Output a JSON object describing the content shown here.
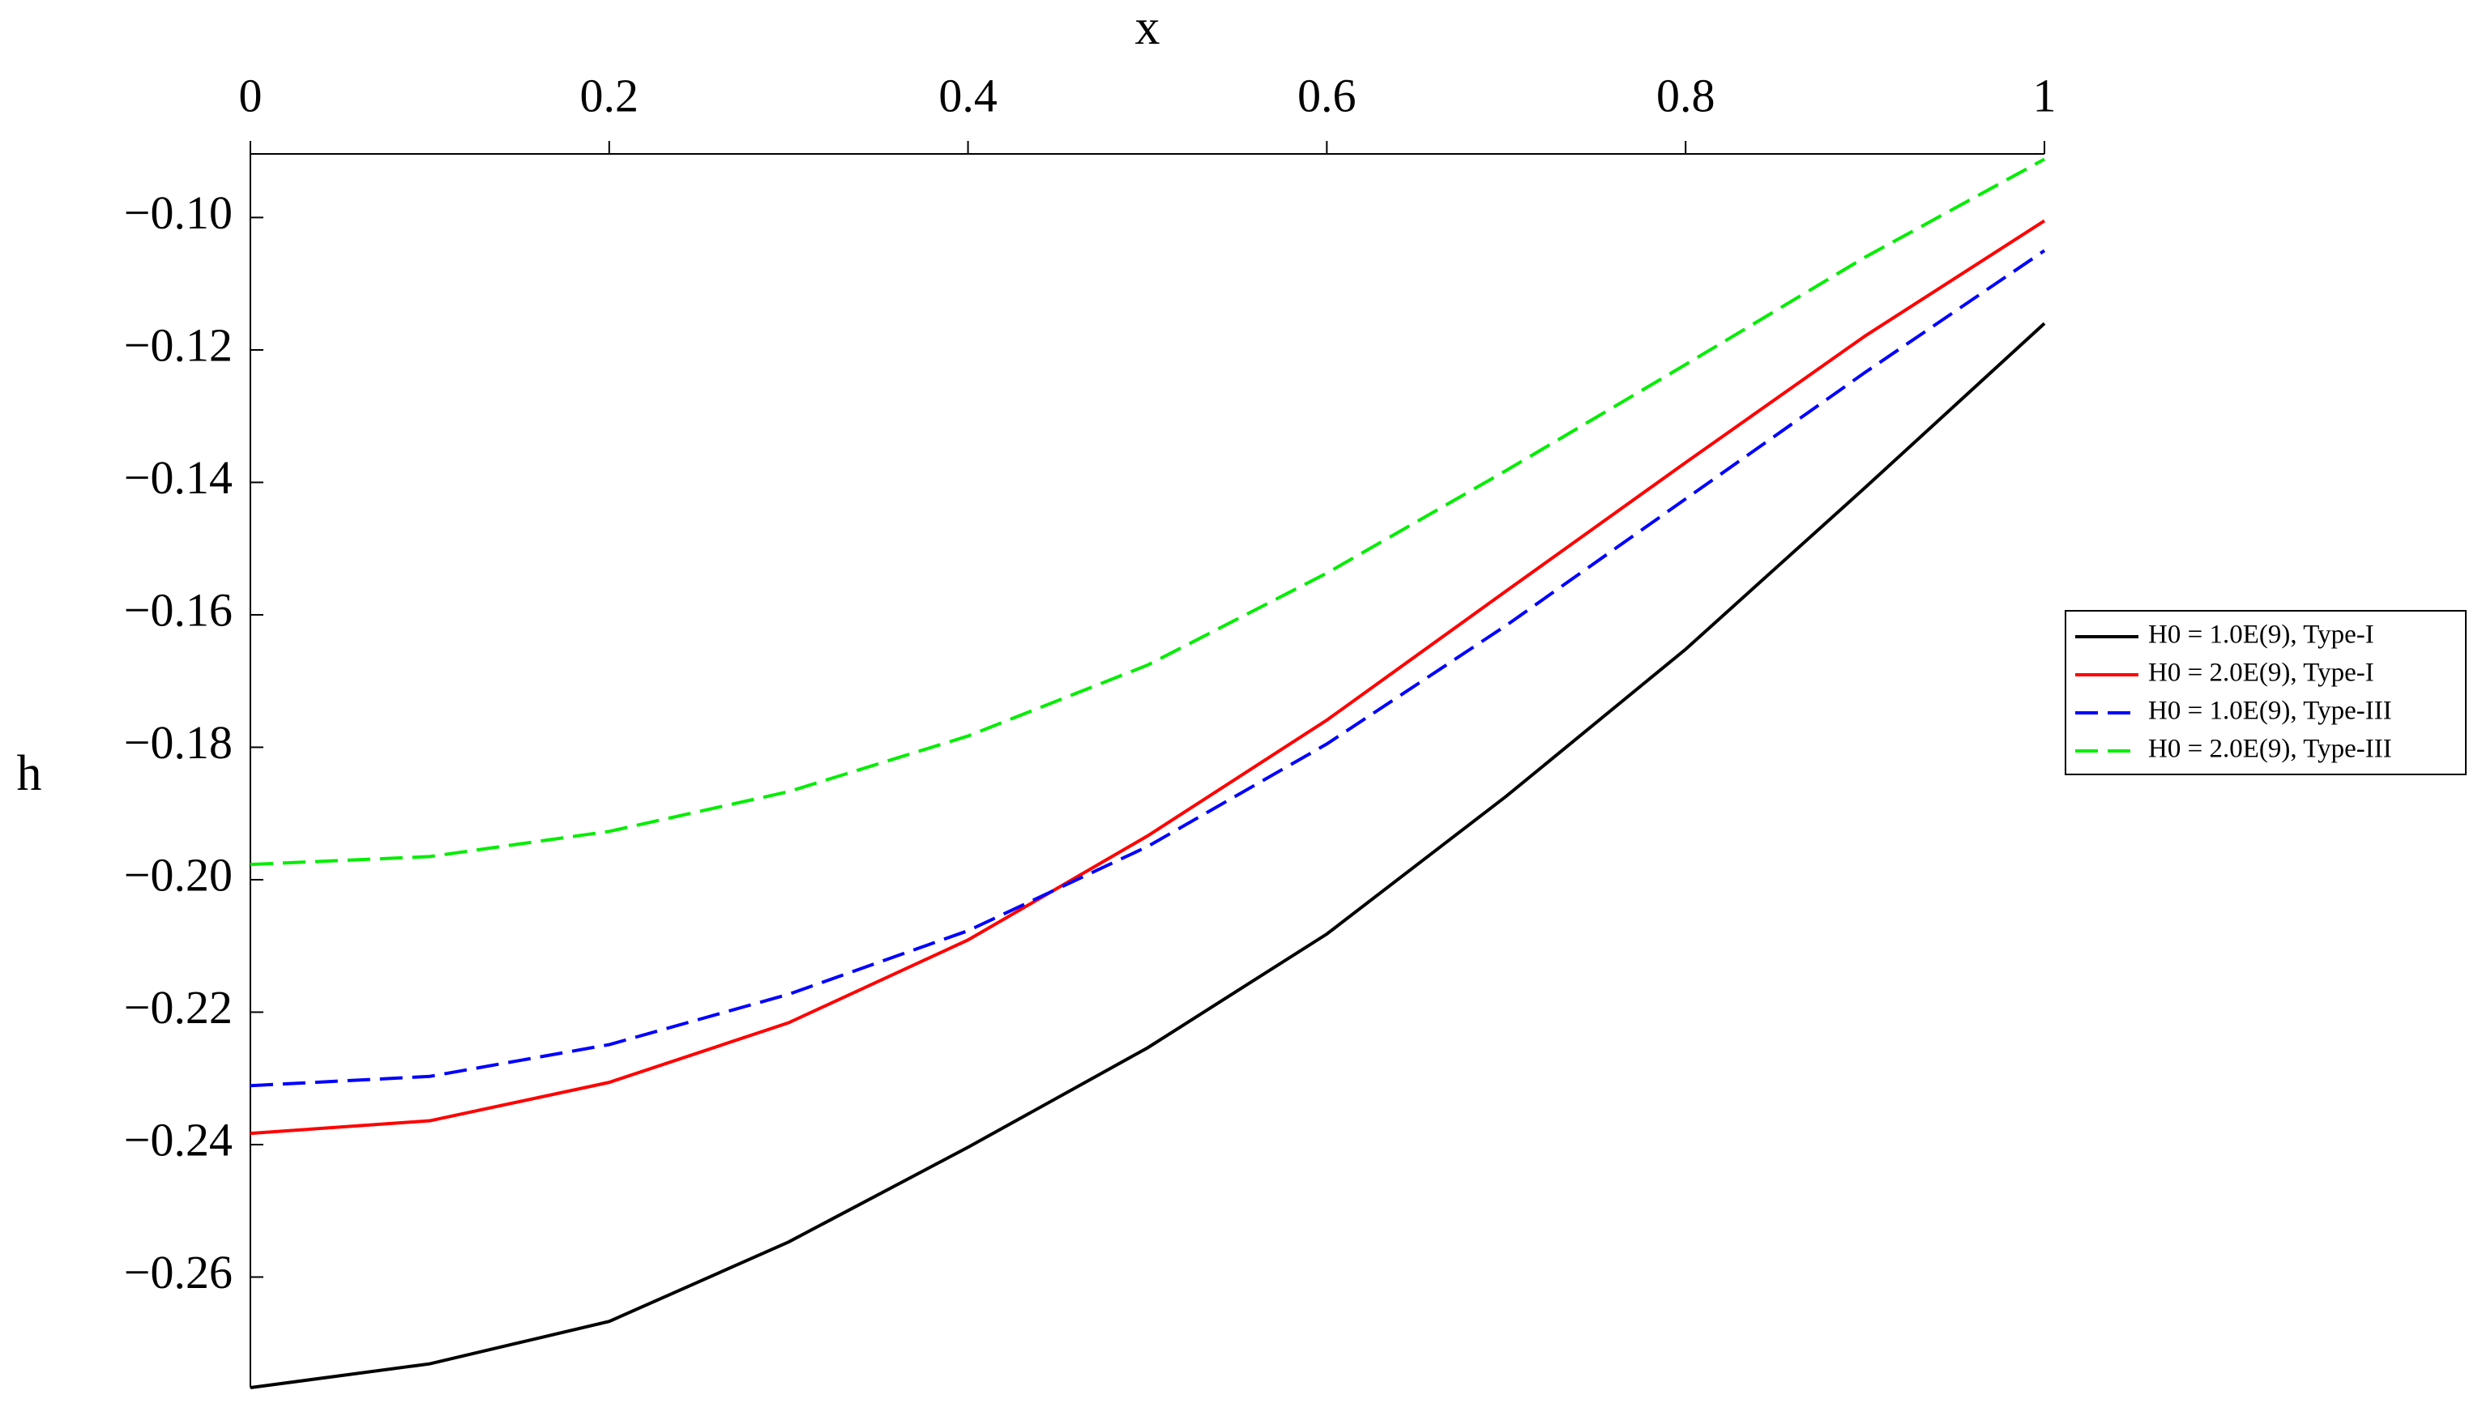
{
  "chart_data": {
    "type": "line",
    "x_label": "x",
    "y_label": "h",
    "x": [
      0,
      0.1,
      0.2,
      0.3,
      0.4,
      0.5,
      0.6,
      0.7,
      0.8,
      0.9,
      1
    ],
    "series": [
      {
        "name": "H0 = 1.0E(9), Type-I",
        "color": "#000000",
        "style": "solid",
        "values": [
          -0.2767,
          -0.2731,
          -0.2667,
          -0.2547,
          -0.2404,
          -0.2254,
          -0.2082,
          -0.1874,
          -0.1652,
          -0.1408,
          -0.116
        ]
      },
      {
        "name": "H0 = 2.0E(9), Type-I",
        "color": "#ff0000",
        "style": "solid",
        "values": [
          -0.2383,
          -0.2364,
          -0.2306,
          -0.2216,
          -0.2091,
          -0.1934,
          -0.1759,
          -0.1564,
          -0.137,
          -0.1179,
          -0.1005
        ]
      },
      {
        "name": "H0 = 1.0E(9), Type-III",
        "color": "#0000ff",
        "style": "dash",
        "values": [
          -0.2311,
          -0.2297,
          -0.2249,
          -0.2173,
          -0.2077,
          -0.195,
          -0.1795,
          -0.1616,
          -0.1425,
          -0.1234,
          -0.105
        ]
      },
      {
        "name": "H0 = 2.0E(9), Type-III",
        "color": "#00ee00",
        "style": "dash",
        "values": [
          -0.1977,
          -0.1965,
          -0.1927,
          -0.1867,
          -0.1783,
          -0.1676,
          -0.1537,
          -0.1382,
          -0.1222,
          -0.106,
          -0.0912
        ]
      }
    ],
    "xlim": [
      0,
      1
    ],
    "ylim": [
      -0.2767,
      -0.0904
    ],
    "xticks": [
      0,
      0.2,
      0.4,
      0.6,
      0.8,
      1
    ],
    "yticks": [
      {
        "value": -0.1,
        "label": "−0.10"
      },
      {
        "value": -0.12,
        "label": "−0.12"
      },
      {
        "value": -0.14,
        "label": "−0.14"
      },
      {
        "value": -0.16,
        "label": "−0.16"
      },
      {
        "value": -0.18,
        "label": "−0.18"
      },
      {
        "value": -0.2,
        "label": "−0.20"
      },
      {
        "value": -0.22,
        "label": "−0.22"
      },
      {
        "value": -0.24,
        "label": "−0.24"
      },
      {
        "value": -0.26,
        "label": "−0.26"
      }
    ],
    "x_axis_position": "top",
    "grid": false,
    "legend": "right"
  }
}
